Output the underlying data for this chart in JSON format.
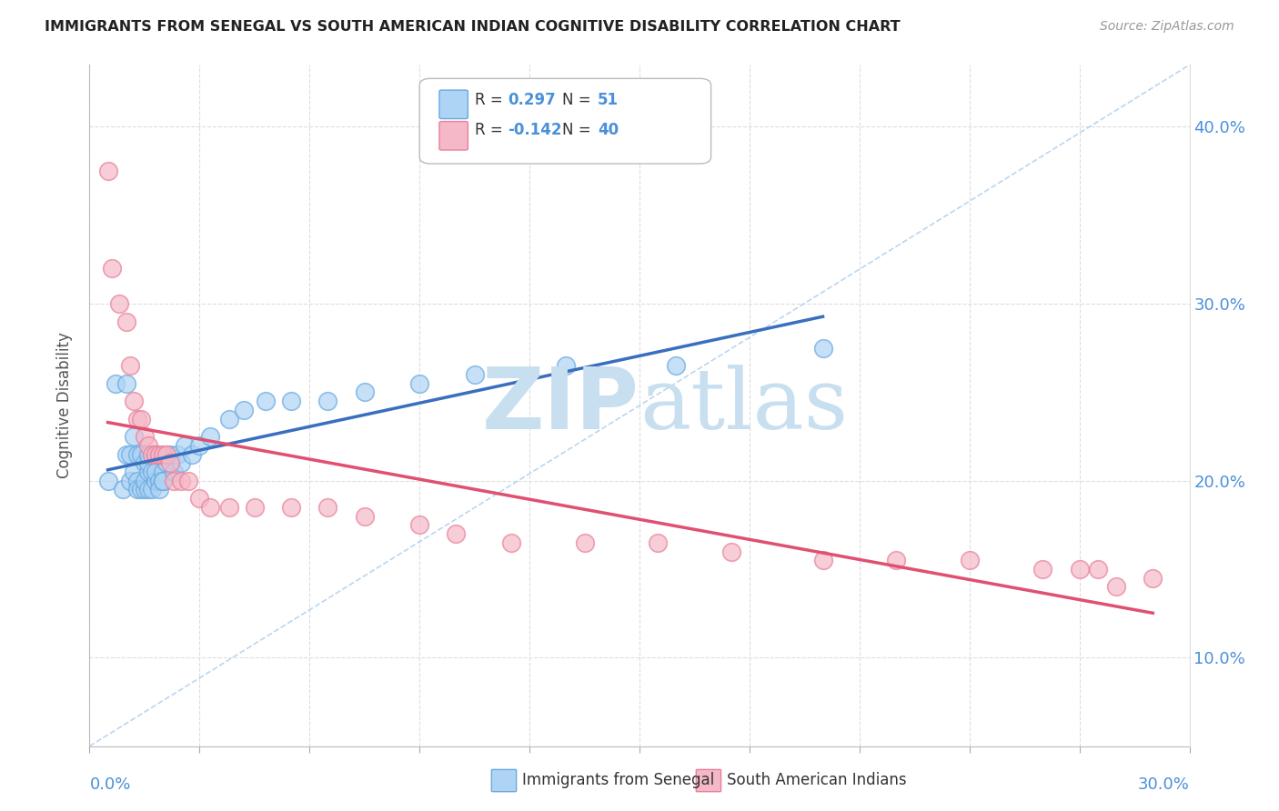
{
  "title": "IMMIGRANTS FROM SENEGAL VS SOUTH AMERICAN INDIAN COGNITIVE DISABILITY CORRELATION CHART",
  "source": "Source: ZipAtlas.com",
  "ylabel": "Cognitive Disability",
  "ylabel_right_ticks": [
    0.1,
    0.2,
    0.3,
    0.4
  ],
  "ylabel_right_labels": [
    "10.0%",
    "20.0%",
    "30.0%",
    "40.0%"
  ],
  "xlim": [
    0.0,
    0.3
  ],
  "ylim": [
    0.05,
    0.435
  ],
  "legend_R1": "0.297",
  "legend_N1": "51",
  "legend_R2": "-0.142",
  "legend_N2": "40",
  "legend_label1": "Immigrants from Senegal",
  "legend_label2": "South American Indians",
  "color_blue_fill": "#ADD4F5",
  "color_pink_fill": "#F5B8C8",
  "color_blue_edge": "#6AA8E0",
  "color_pink_edge": "#E88098",
  "color_blue_line": "#3A6EBF",
  "color_pink_line": "#E05070",
  "color_diag_line": "#AACCEE",
  "watermark_zip": "ZIP",
  "watermark_atlas": "atlas",
  "background_color": "#FFFFFF",
  "grid_color": "#DDDDDD",
  "senegal_x": [
    0.005,
    0.007,
    0.009,
    0.01,
    0.01,
    0.011,
    0.011,
    0.012,
    0.012,
    0.013,
    0.013,
    0.013,
    0.014,
    0.014,
    0.015,
    0.015,
    0.015,
    0.016,
    0.016,
    0.016,
    0.016,
    0.017,
    0.017,
    0.018,
    0.018,
    0.018,
    0.019,
    0.019,
    0.02,
    0.02,
    0.02,
    0.021,
    0.022,
    0.023,
    0.024,
    0.025,
    0.026,
    0.028,
    0.03,
    0.033,
    0.038,
    0.042,
    0.048,
    0.055,
    0.065,
    0.075,
    0.09,
    0.105,
    0.13,
    0.16,
    0.2
  ],
  "senegal_y": [
    0.2,
    0.255,
    0.195,
    0.255,
    0.215,
    0.2,
    0.215,
    0.205,
    0.225,
    0.215,
    0.2,
    0.195,
    0.195,
    0.215,
    0.195,
    0.21,
    0.2,
    0.205,
    0.195,
    0.21,
    0.215,
    0.205,
    0.195,
    0.215,
    0.2,
    0.205,
    0.2,
    0.195,
    0.205,
    0.2,
    0.2,
    0.21,
    0.215,
    0.205,
    0.215,
    0.21,
    0.22,
    0.215,
    0.22,
    0.225,
    0.235,
    0.24,
    0.245,
    0.245,
    0.245,
    0.25,
    0.255,
    0.26,
    0.265,
    0.265,
    0.275
  ],
  "samindian_x": [
    0.005,
    0.006,
    0.008,
    0.01,
    0.011,
    0.012,
    0.013,
    0.014,
    0.015,
    0.016,
    0.017,
    0.018,
    0.019,
    0.02,
    0.021,
    0.022,
    0.023,
    0.025,
    0.027,
    0.03,
    0.033,
    0.038,
    0.045,
    0.055,
    0.065,
    0.075,
    0.09,
    0.1,
    0.115,
    0.135,
    0.155,
    0.175,
    0.2,
    0.22,
    0.24,
    0.26,
    0.27,
    0.275,
    0.28,
    0.29
  ],
  "samindian_y": [
    0.375,
    0.32,
    0.3,
    0.29,
    0.265,
    0.245,
    0.235,
    0.235,
    0.225,
    0.22,
    0.215,
    0.215,
    0.215,
    0.215,
    0.215,
    0.21,
    0.2,
    0.2,
    0.2,
    0.19,
    0.185,
    0.185,
    0.185,
    0.185,
    0.185,
    0.18,
    0.175,
    0.17,
    0.165,
    0.165,
    0.165,
    0.16,
    0.155,
    0.155,
    0.155,
    0.15,
    0.15,
    0.15,
    0.14,
    0.145
  ]
}
